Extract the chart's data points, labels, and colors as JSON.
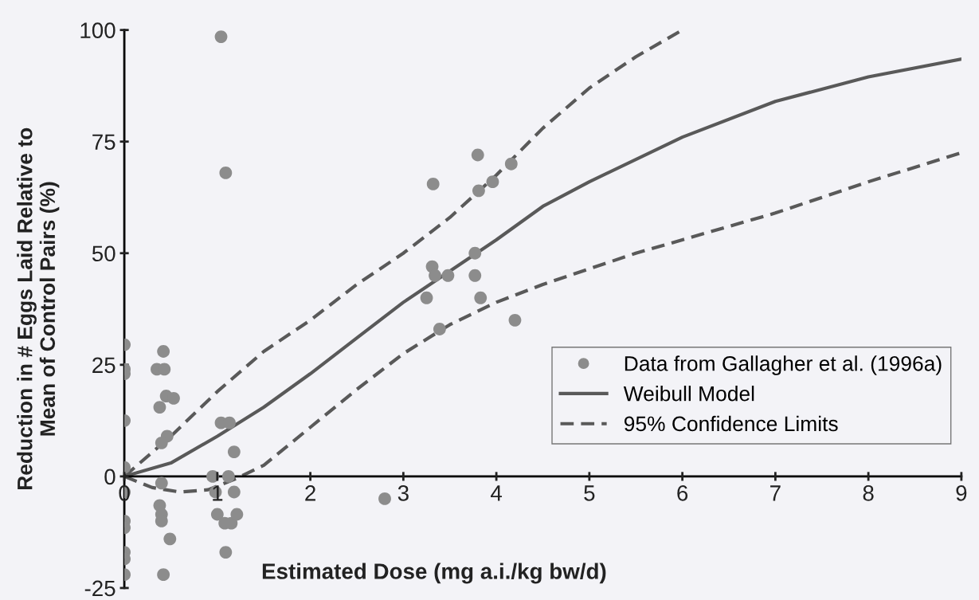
{
  "chart_data": {
    "type": "scatter",
    "xlabel": "Estimated Dose (mg a.i./kg bw/d)",
    "ylabel": "Reduction in # Eggs Laid Relative to\nMean of Control Pairs (%)",
    "xlim": [
      0,
      9
    ],
    "ylim": [
      -25,
      100
    ],
    "xticks": [
      0,
      1,
      2,
      3,
      4,
      5,
      6,
      7,
      8,
      9
    ],
    "yticks": [
      -25,
      0,
      25,
      50,
      75,
      100
    ],
    "grid": false,
    "legend": "right",
    "series": [
      {
        "name": "Data from Gallagher et al. (1996a)",
        "type": "scatter",
        "marker": "circle",
        "color": "#8c8c8c",
        "x": [
          0,
          0,
          0,
          0,
          0,
          0,
          0,
          0,
          0,
          0,
          0,
          0.42,
          0.35,
          0.43,
          0.45,
          0.38,
          0.53,
          0.46,
          0.4,
          0.4,
          0.38,
          0.4,
          0.4,
          0.49,
          0.42,
          0.95,
          0.98,
          1.04,
          1.13,
          1.18,
          1.12,
          1.18,
          1.0,
          1.08,
          1.15,
          1.21,
          1.09,
          1.04,
          1.09,
          2.8,
          3.8,
          3.32,
          4.16,
          3.81,
          3.96,
          3.77,
          3.31,
          3.34,
          3.48,
          3.77,
          3.25,
          3.83,
          3.39,
          4.2
        ],
        "values": [
          29.5,
          24,
          23,
          12.5,
          2,
          -3.5,
          -10,
          -11.5,
          -17,
          -18.5,
          -22,
          28,
          24,
          24,
          18,
          15.5,
          17.5,
          9,
          7.5,
          -1.5,
          -6.5,
          -8.5,
          -10,
          -14,
          -22,
          0,
          -3.5,
          12,
          12,
          5.5,
          0,
          -3.5,
          -8.5,
          -10.5,
          -10.5,
          -8.5,
          -17,
          98.5,
          68,
          -5,
          72,
          65.5,
          70,
          64,
          66,
          50,
          47,
          45,
          45,
          45,
          40,
          40,
          33,
          35
        ]
      },
      {
        "name": "Weibull Model",
        "type": "line",
        "line_style": "solid",
        "marker": "none",
        "color": "#595959",
        "x": [
          0,
          0.5,
          1,
          1.5,
          2,
          2.5,
          3,
          3.5,
          4,
          4.5,
          5,
          6,
          7,
          8,
          9
        ],
        "values": [
          0,
          3,
          9,
          15.5,
          23,
          31,
          39,
          46,
          53,
          60.5,
          66,
          76,
          84,
          89.5,
          93.5
        ]
      },
      {
        "name": "95% Confidence Limits",
        "type": "line",
        "line_style": "dashed",
        "marker": "none",
        "color": "#595959",
        "x": [
          0,
          0.5,
          1,
          1.5,
          2,
          2.5,
          3,
          3.5,
          4,
          4.5,
          5,
          5.5,
          6
        ],
        "values": [
          0,
          9,
          19,
          28,
          35,
          43,
          50,
          58,
          67.5,
          78,
          87,
          94,
          100
        ]
      },
      {
        "type": "line",
        "line_style": "dashed",
        "marker": "none",
        "color": "#595959",
        "x": [
          0,
          0.3,
          0.6,
          0.9,
          1.2,
          1.5,
          2,
          2.5,
          3,
          3.5,
          4,
          4.5,
          5,
          5.5,
          6,
          7,
          8,
          9
        ],
        "values": [
          0,
          -2.5,
          -3.5,
          -3,
          -0.5,
          2.5,
          11,
          19.5,
          27.5,
          34,
          39,
          43,
          46.5,
          50,
          53,
          59,
          66,
          72.5
        ]
      }
    ]
  }
}
